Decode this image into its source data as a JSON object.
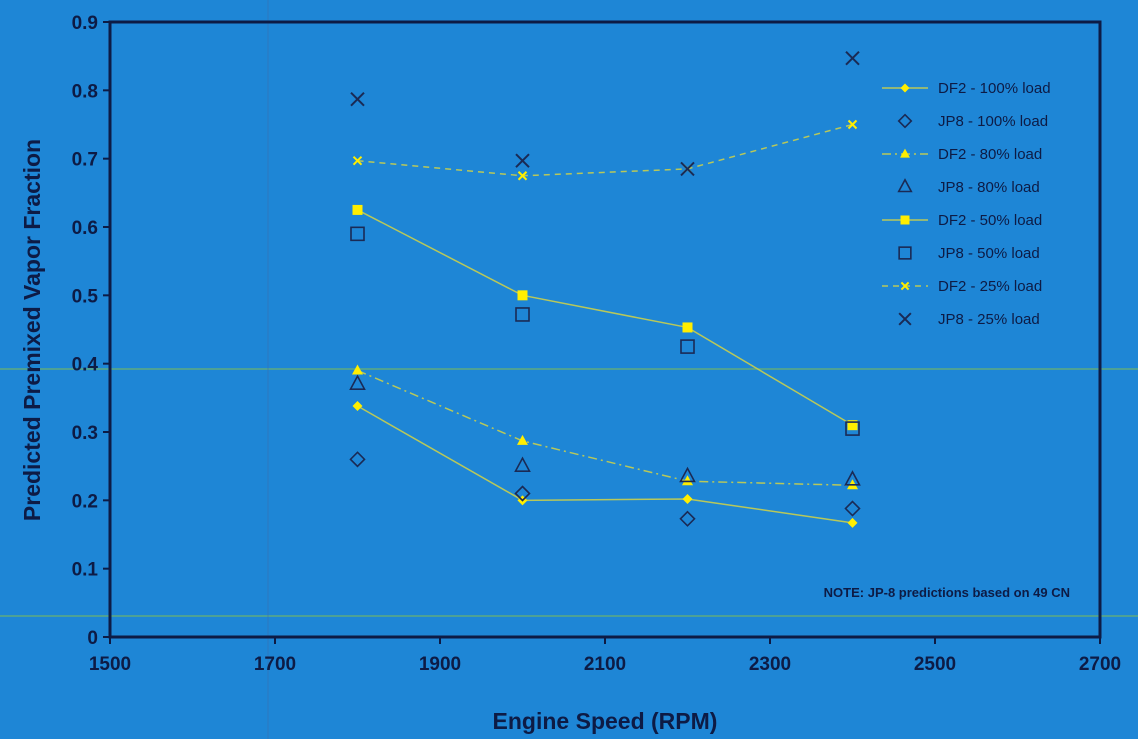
{
  "chart_data": {
    "type": "scatter",
    "xlabel": "Engine Speed (RPM)",
    "ylabel": "Predicted Premixed Vapor Fraction",
    "xlim": [
      1500,
      2700
    ],
    "ylim": [
      0,
      0.9
    ],
    "x_ticks": [
      "1500",
      "1700",
      "1900",
      "2100",
      "2300",
      "2500",
      "2700"
    ],
    "y_ticks": [
      "0",
      "0.1",
      "0.2",
      "0.3",
      "0.4",
      "0.5",
      "0.6",
      "0.7",
      "0.8",
      "0.9"
    ],
    "grid": false,
    "legend_placement": "top-right",
    "note": "NOTE: JP-8 predictions based on 49 CN",
    "colors": {
      "background": "#1e86d6",
      "fuel_df2": "#ffee00",
      "fuel_jp8": "#1a2a55",
      "trend_line": "#b8c85a"
    },
    "series": [
      {
        "name": "DF2 - 100% load",
        "marker": "diamond-filled",
        "color": "#ffee00",
        "line": "solid",
        "x": [
          1800,
          2000,
          2200,
          2400
        ],
        "y": [
          0.338,
          0.2,
          0.202,
          0.167
        ]
      },
      {
        "name": "JP8 - 100% load",
        "marker": "diamond-open",
        "color": "#1a2a55",
        "line": "none",
        "x": [
          1800,
          2000,
          2200,
          2400
        ],
        "y": [
          0.26,
          0.21,
          0.173,
          0.188
        ]
      },
      {
        "name": "DF2 - 80% load",
        "marker": "triangle-filled",
        "color": "#ffee00",
        "line": "dashdot",
        "x": [
          1800,
          2000,
          2200,
          2400
        ],
        "y": [
          0.39,
          0.287,
          0.228,
          0.222
        ]
      },
      {
        "name": "JP8 - 80% load",
        "marker": "triangle-open",
        "color": "#1a2a55",
        "line": "none",
        "x": [
          1800,
          2000,
          2200,
          2400
        ],
        "y": [
          0.37,
          0.25,
          0.235,
          0.23
        ]
      },
      {
        "name": "DF2 - 50% load",
        "marker": "square-filled",
        "color": "#ffee00",
        "line": "solid",
        "x": [
          1800,
          2000,
          2200,
          2400
        ],
        "y": [
          0.625,
          0.5,
          0.453,
          0.31
        ]
      },
      {
        "name": "JP8 - 50% load",
        "marker": "square-open",
        "color": "#1a2a55",
        "line": "none",
        "x": [
          1800,
          2000,
          2200,
          2400
        ],
        "y": [
          0.59,
          0.472,
          0.425,
          0.305
        ]
      },
      {
        "name": "DF2 - 25% load",
        "marker": "x-small",
        "color": "#ffee00",
        "line": "dashed",
        "x": [
          1800,
          2000,
          2200,
          2400
        ],
        "y": [
          0.697,
          0.675,
          0.685,
          0.75
        ]
      },
      {
        "name": "JP8 - 25% load",
        "marker": "x-large",
        "color": "#1a2a55",
        "line": "none",
        "x": [
          1800,
          2000,
          2200,
          2400
        ],
        "y": [
          0.787,
          0.697,
          0.685,
          0.847
        ]
      }
    ]
  }
}
